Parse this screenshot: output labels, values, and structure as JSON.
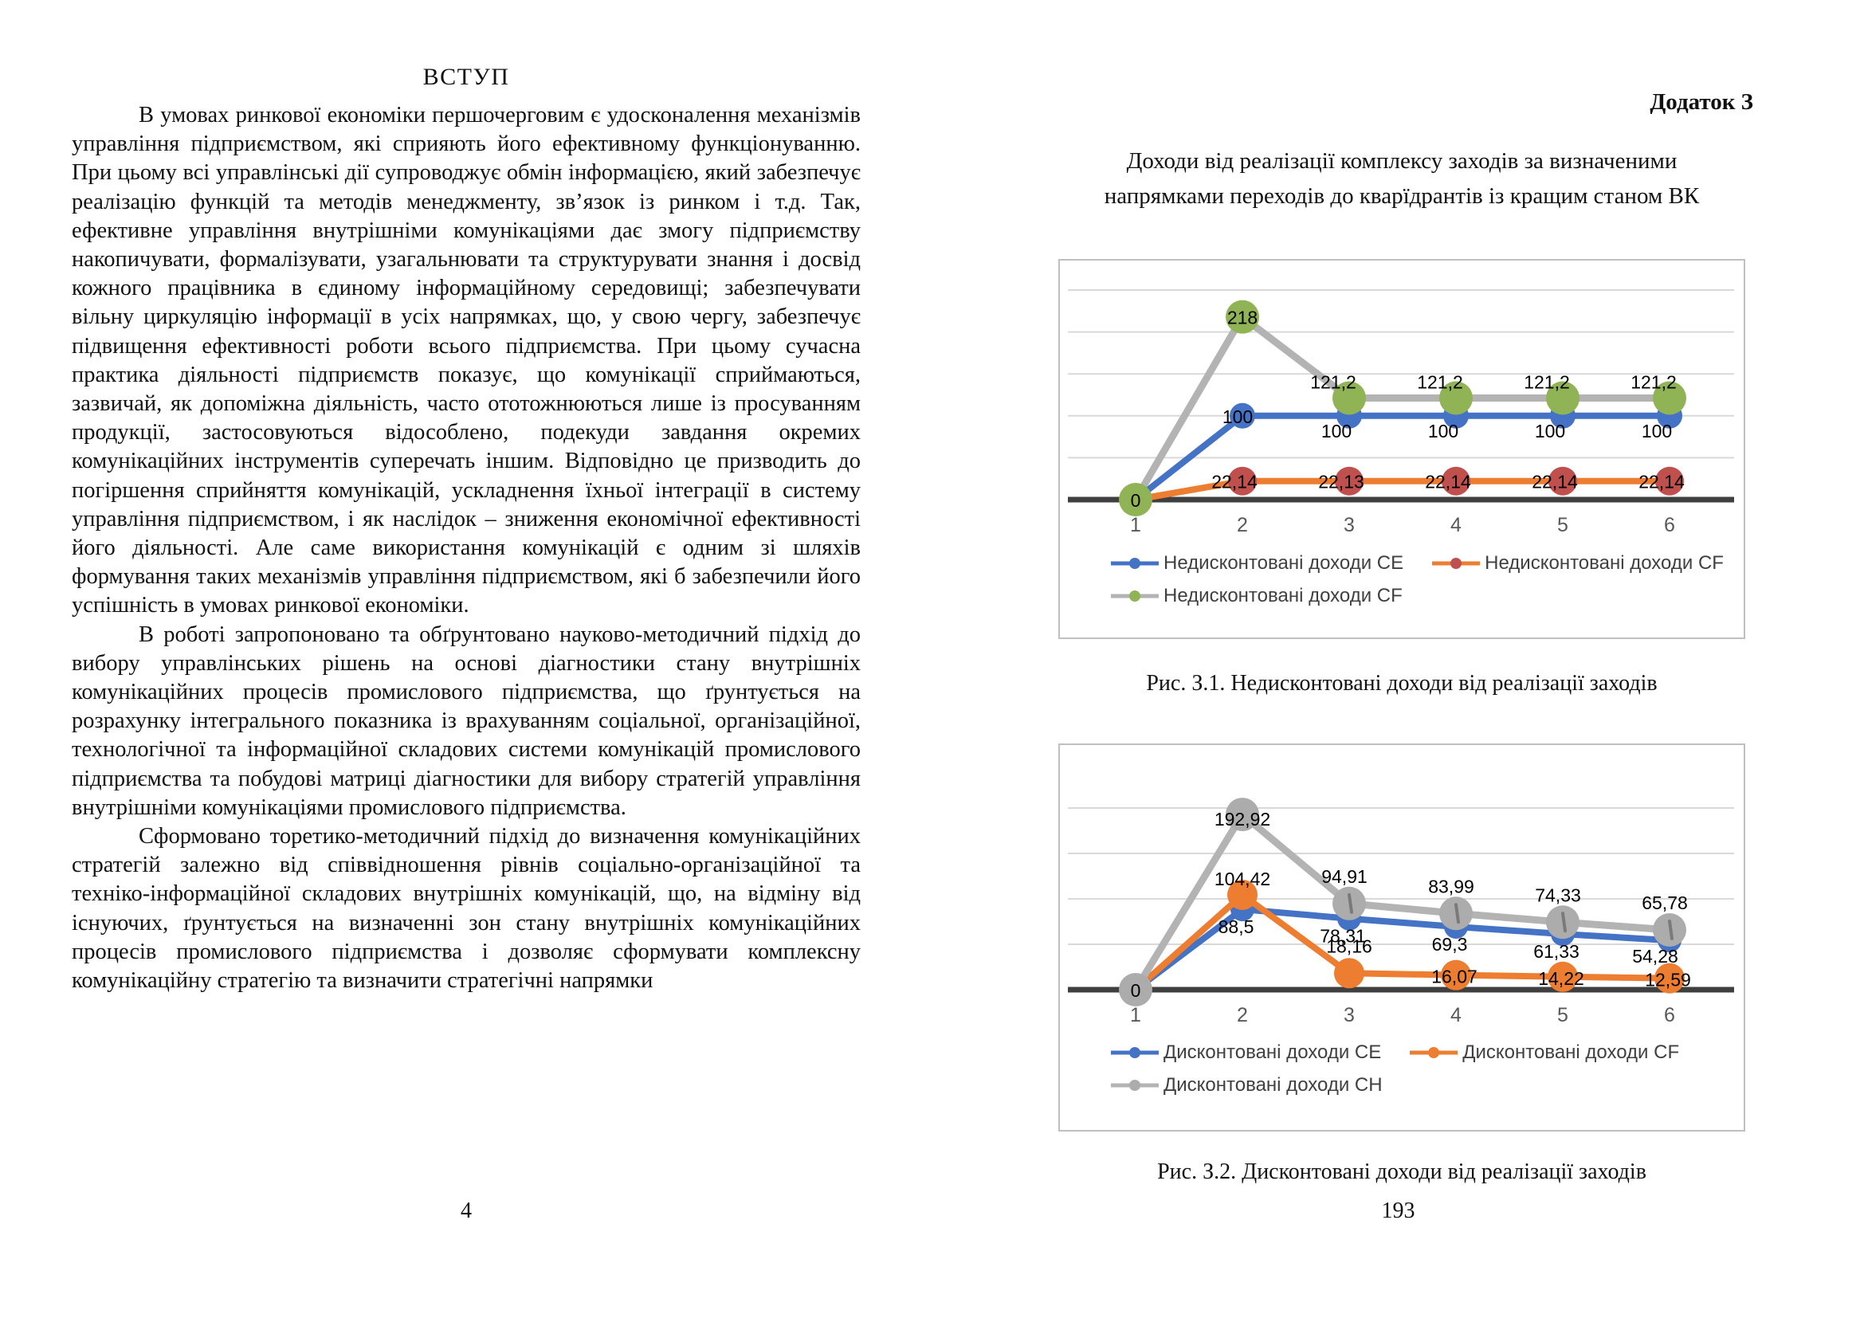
{
  "document": {
    "left_page": {
      "title": "ВСТУП",
      "paragraphs": [
        "В умовах ринкової економіки першочерговим є удосконалення механізмів управління підприємством, які сприяють його ефективному функціонуванню. При цьому всі управлінські дії супроводжує обмін інформацією, який забезпечує реалізацію функцій та методів менеджменту, зв’язок із ринком і т.д. Так, ефективне управління внутрішніми комунікаціями дає змогу підприємству накопичувати, формалізувати, узагальнювати та структурувати знання і досвід кожного працівника в єдиному інформаційному середовищі; забезпечувати вільну циркуляцію інформації в усіх напрямках, що, у свою чергу, забезпечує підвищення ефективності роботи всього підприємства. При цьому сучасна практика діяльності підприємств показує, що комунікації сприймаються, зазвичай, як допоміжна діяльність, часто ототожнюються лише із просуванням продукції, застосовуються відособлено, подекуди завдання окремих комунікаційних інструментів суперечать іншим. Відповідно це призводить до погіршення сприйняття комунікацій, ускладнення їхньої інтеграції в систему управління підприємством, і як наслідок – зниження економічної ефективності його діяльності. Але саме використання комунікацій є одним зі шляхів формування таких механізмів управління підприємством, які б забезпечили його успішність в умовах ринкової економіки.",
        "В роботі запропоновано та обґрунтовано науково-методичний підхід до вибору управлінських рішень на основі діагностики стану внутрішніх комунікаційних процесів промислового підприємства, що ґрунтується на розрахунку інтегрального показника із врахуванням соціальної, організаційної, технологічної та інформаційної складових системи комунікацій промислового підприємства та побудові матриці діагностики для вибору стратегій управління внутрішніми комунікаціями промислового підприємства.",
        "Сформовано торетико-методичний підхід до визначення комунікаційних стратегій залежно від співвідношення рівнів соціально-організаційної та техніко-інформаційної складових внутрішніх комунікацій, що, на відміну від існуючих, ґрунтується на визначенні зон стану внутрішніх комунікаційних процесів промислового підприємства і дозволяє сформувати комплексну комунікаційну стратегію та визначити стратегічні напрямки"
      ],
      "page_number": "4"
    },
    "right_page": {
      "header": "Додаток З",
      "title_lines": [
        "Доходи від реалізації комплексу заходів за визначеними",
        "напрямками переходів до кварїдрантів із кращим станом ВК"
      ],
      "figure1_caption": "Рис. З.1. Недисконтовані доходи від реалізації заходів",
      "figure2_caption": "Рис. З.2. Дисконтовані доходи від реалізації заходів",
      "page_number": "193"
    }
  },
  "colors": {
    "blue": "#4472C4",
    "orange": "#ED7D31",
    "dark_red": "#C0504D",
    "green": "#8FB355",
    "gray_line": "#B3B3B3",
    "gray_marker": "#ACACAC",
    "axis": "#3F3F3F",
    "gridline": "#D9D9D9",
    "chart_border": "#BFBFBF",
    "tick_text": "#595959",
    "legend_text": "#404040",
    "data_label": "#000000"
  },
  "chart_data": [
    {
      "type": "line",
      "title": "",
      "x": [
        1,
        2,
        3,
        4,
        5,
        6
      ],
      "x_tick_labels": [
        "1",
        "2",
        "3",
        "4",
        "5",
        "6"
      ],
      "ylim": [
        0,
        250
      ],
      "grid_interval": 50,
      "grid": "horizontal",
      "legend_position": "bottom",
      "series": [
        {
          "name": "Недисконтовані доходи СЕ",
          "values": [
            0,
            100,
            100,
            100,
            100,
            100
          ],
          "point_labels": [
            "",
            "100",
            "100",
            "100",
            "100",
            "100"
          ],
          "line_color": "#4472C4",
          "marker_color": "#4472C4"
        },
        {
          "name": "Недисконтовані доходи СF",
          "values": [
            0,
            22.14,
            22.13,
            22.14,
            22.14,
            22.14
          ],
          "point_labels": [
            "",
            "22,14",
            "22,13",
            "22,14",
            "22,14",
            "22,14"
          ],
          "line_color": "#ED7D31",
          "marker_color": "#C0504D"
        },
        {
          "name": "Недисконтовані доходи СF",
          "values": [
            0,
            218,
            121.2,
            121.2,
            121.2,
            121.2
          ],
          "point_labels": [
            "0",
            "218",
            "121,2",
            "121,2",
            "121,2",
            "121,2"
          ],
          "line_color": "#B3B3B3",
          "marker_color": "#8FB355"
        }
      ]
    },
    {
      "type": "line",
      "title": "",
      "x": [
        1,
        2,
        3,
        4,
        5,
        6
      ],
      "x_tick_labels": [
        "1",
        "2",
        "3",
        "4",
        "5",
        "6"
      ],
      "ylim": [
        0,
        220
      ],
      "grid_interval": 50,
      "grid": "horizontal",
      "legend_position": "bottom",
      "series": [
        {
          "name": "Дисконтовані доходи СЕ",
          "values": [
            0,
            88.5,
            78.31,
            69.3,
            61.33,
            54.28
          ],
          "point_labels": [
            "",
            "88,5",
            "78,31",
            "69,3",
            "61,33",
            "54,28"
          ],
          "line_color": "#4472C4",
          "marker_color": "#4472C4"
        },
        {
          "name": "Дисконтовані доходи СF",
          "values": [
            0,
            104.42,
            18.16,
            16.07,
            14.22,
            12.59
          ],
          "point_labels": [
            "",
            "104,42",
            "18,16",
            "16,07",
            "14,22",
            "12,59"
          ],
          "line_color": "#ED7D31",
          "marker_color": "#ED7D31"
        },
        {
          "name": "Дисконтовані доходи СН",
          "values": [
            0,
            192.92,
            94.91,
            83.99,
            74.33,
            65.78
          ],
          "point_labels": [
            "0",
            "192,92",
            "94,91",
            "83,99",
            "74,33",
            "65,78"
          ],
          "line_color": "#B3B3B3",
          "marker_color": "#ACACAC"
        }
      ]
    }
  ]
}
